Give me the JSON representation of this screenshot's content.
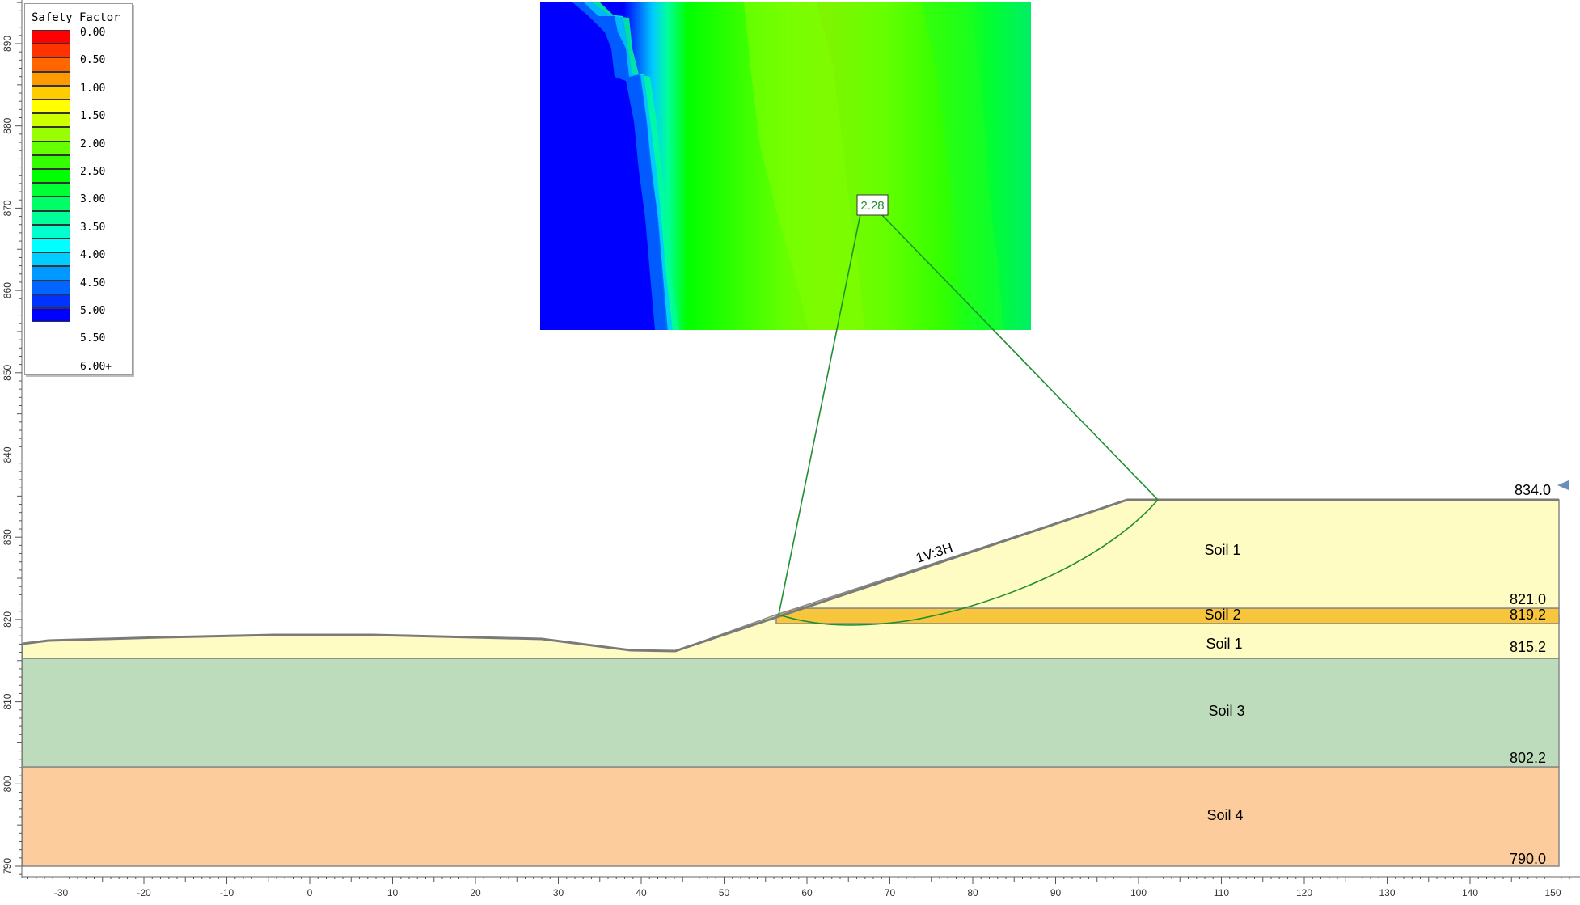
{
  "legend": {
    "title": "Safety Factor",
    "colors": [
      "#ff0000",
      "#ff3300",
      "#ff6600",
      "#ff9900",
      "#ffcc00",
      "#ffff00",
      "#ccff00",
      "#99ff00",
      "#66ff00",
      "#33ff00",
      "#00ff00",
      "#00ff33",
      "#00ff66",
      "#00ff99",
      "#00ffcc",
      "#00ffff",
      "#00ccff",
      "#0099ff",
      "#0066ff",
      "#0033ff",
      "#0000ff"
    ],
    "labels": [
      "0.00",
      "0.50",
      "1.00",
      "1.50",
      "2.00",
      "2.50",
      "3.00",
      "3.50",
      "4.00",
      "4.50",
      "5.00",
      "5.50",
      "6.00+"
    ]
  },
  "model": {
    "slope_label": "1V:3H",
    "min_fs_label": "2.28",
    "x_axis_ticks": [
      -30,
      -20,
      -10,
      0,
      10,
      20,
      30,
      40,
      50,
      60,
      70,
      80,
      90,
      100,
      110,
      120,
      130,
      140,
      150
    ],
    "y_axis_ticks": [
      790,
      800,
      810,
      820,
      830,
      840,
      850,
      860,
      870,
      880,
      890
    ],
    "layers": [
      {
        "name": "Soil 1",
        "top": 834.0,
        "bottom": 821.0,
        "color": "#fefcc3"
      },
      {
        "name": "Soil 2",
        "top": 821.0,
        "bottom": 819.2,
        "color": "#f8c63d"
      },
      {
        "name": "Soil 1",
        "top": 819.2,
        "bottom": 815.2,
        "color": "#fefcc3"
      },
      {
        "name": "Soil 3",
        "top": 815.2,
        "bottom": 802.2,
        "color": "#bddcbb"
      },
      {
        "name": "Soil 4",
        "top": 802.2,
        "bottom": 790.0,
        "color": "#fccc9c"
      }
    ],
    "elevation_labels": [
      "834.0",
      "821.0",
      "819.2",
      "815.2",
      "802.2",
      "790.0"
    ]
  }
}
